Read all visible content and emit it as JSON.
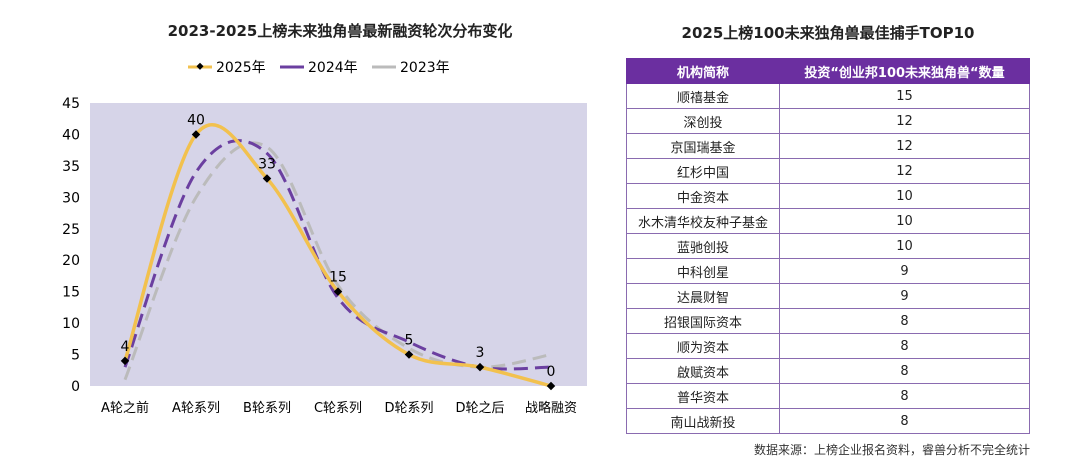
{
  "chart_data": {
    "type": "line",
    "title": "2023-2025上榜未来独角兽最新融资轮次分布变化",
    "categories": [
      "A轮之前",
      "A轮系列",
      "B轮系列",
      "C轮系列",
      "D轮系列",
      "D轮之后",
      "战略融资"
    ],
    "yticks": [
      0,
      5,
      10,
      15,
      20,
      25,
      30,
      35,
      40,
      45
    ],
    "ylim": [
      0,
      45
    ],
    "legend_position": "top",
    "plot_background": "#d6d4e8",
    "series": [
      {
        "name": "2025年",
        "values": [
          4,
          40,
          33,
          15,
          5,
          3,
          0
        ],
        "color": "#f2c14e",
        "style": "solid",
        "labels": [
          "4",
          "40",
          "33",
          "15",
          "5",
          "3",
          "0"
        ]
      },
      {
        "name": "2024年",
        "values": [
          3,
          34,
          37,
          14,
          7,
          3,
          3
        ],
        "color": "#6b3fa0",
        "style": "dashed"
      },
      {
        "name": "2023年",
        "values": [
          1,
          30,
          38,
          16,
          6,
          3,
          5
        ],
        "color": "#bbbbbb",
        "style": "dashed"
      }
    ]
  },
  "table": {
    "title": "2025上榜100未来独角兽最佳捕手TOP10",
    "headers": [
      "机构简称",
      "投资“创业邦100未来独角兽“数量"
    ],
    "rows": [
      [
        "顺禧基金",
        "15"
      ],
      [
        "深创投",
        "12"
      ],
      [
        "京国瑞基金",
        "12"
      ],
      [
        "红杉中国",
        "12"
      ],
      [
        "中金资本",
        "10"
      ],
      [
        "水木清华校友种子基金",
        "10"
      ],
      [
        "蓝驰创投",
        "10"
      ],
      [
        "中科创星",
        "9"
      ],
      [
        "达晨财智",
        "9"
      ],
      [
        "招银国际资本",
        "8"
      ],
      [
        "顺为资本",
        "8"
      ],
      [
        "啟赋资本",
        "8"
      ],
      [
        "普华资本",
        "8"
      ],
      [
        "南山战新投",
        "8"
      ]
    ]
  },
  "source": "数据来源：上榜企业报名资料，睿兽分析不完全统计"
}
